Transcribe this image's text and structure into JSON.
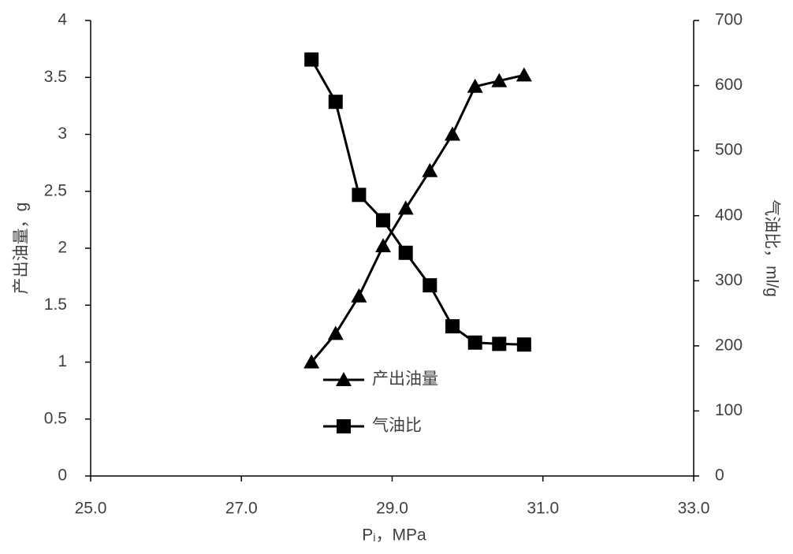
{
  "chart_data": {
    "type": "line",
    "x_label": "Pᵢ，MPa",
    "y_label": "产出油量，g",
    "y2_label": "气油比，ml/g",
    "x": [
      27.93,
      28.25,
      28.56,
      28.88,
      29.18,
      29.5,
      29.8,
      30.1,
      30.42,
      30.75
    ],
    "series": [
      {
        "name": "产出油量",
        "color": "#000000",
        "marker": "triangle",
        "values": [
          1.0,
          1.25,
          1.58,
          2.02,
          2.35,
          2.68,
          3.0,
          3.42,
          3.47,
          3.52
        ]
      },
      {
        "name": "气油比",
        "color": "#000000",
        "marker": "square",
        "axis": "y2",
        "values": [
          640,
          575,
          432,
          393,
          343,
          293,
          230,
          205,
          203,
          202
        ]
      }
    ],
    "xlim": [
      25,
      33
    ],
    "xticks": [
      {
        "value": 25,
        "label": "25.0"
      },
      {
        "value": 27,
        "label": "27.0"
      },
      {
        "value": 29,
        "label": "29.0"
      },
      {
        "value": 31,
        "label": "31.0"
      },
      {
        "value": 33,
        "label": "33.0"
      }
    ],
    "ylim": [
      0,
      4
    ],
    "yticks": [
      0,
      0.5,
      1,
      1.5,
      2,
      2.5,
      3,
      3.5,
      4
    ],
    "y2lim": [
      0,
      700
    ],
    "y2ticks": [
      0,
      100,
      200,
      300,
      400,
      500,
      600,
      700
    ],
    "grid": false
  }
}
